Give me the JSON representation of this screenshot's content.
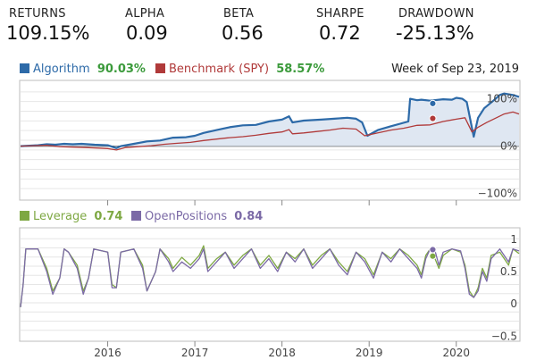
{
  "stats": [
    {
      "label": "RETURNS",
      "value": "109.15%"
    },
    {
      "label": "ALPHA",
      "value": "0.09"
    },
    {
      "label": "BETA",
      "value": "0.56"
    },
    {
      "label": "SHARPE",
      "value": "0.72"
    },
    {
      "label": "DRAWDOWN",
      "value": "-25.13%"
    }
  ],
  "colors": {
    "algorithm": "#2d6aa8",
    "benchmark": "#b03a3a",
    "leverage": "#7ea843",
    "open_positions": "#7b6aa6",
    "area_fill": "#dfe7f2",
    "legend_value": "#3b9a3b"
  },
  "chart_data": [
    {
      "type": "line",
      "period_label": "Week of Sep 23, 2019",
      "yticks": [
        {
          "value": 100,
          "label": "100%"
        },
        {
          "value": 0,
          "label": "0%"
        },
        {
          "value": -100,
          "label": "−100%"
        }
      ],
      "ylim": [
        -110,
        135
      ],
      "grid": true,
      "legend": "top-left",
      "series": [
        {
          "name": "Algorithm",
          "legend_value": "90.03%",
          "area": true,
          "marker": {
            "x": 2019.73,
            "y": 90.03
          },
          "points": [
            [
              2015.0,
              0
            ],
            [
              2015.1,
              1
            ],
            [
              2015.2,
              2
            ],
            [
              2015.3,
              4
            ],
            [
              2015.4,
              3
            ],
            [
              2015.5,
              5
            ],
            [
              2015.6,
              4
            ],
            [
              2015.7,
              5
            ],
            [
              2015.85,
              3
            ],
            [
              2016.0,
              2
            ],
            [
              2016.1,
              -4
            ],
            [
              2016.15,
              0
            ],
            [
              2016.3,
              5
            ],
            [
              2016.45,
              10
            ],
            [
              2016.6,
              12
            ],
            [
              2016.75,
              18
            ],
            [
              2016.9,
              19
            ],
            [
              2017.0,
              22
            ],
            [
              2017.1,
              28
            ],
            [
              2017.25,
              34
            ],
            [
              2017.4,
              40
            ],
            [
              2017.55,
              44
            ],
            [
              2017.7,
              45
            ],
            [
              2017.85,
              52
            ],
            [
              2018.0,
              56
            ],
            [
              2018.08,
              63
            ],
            [
              2018.12,
              50
            ],
            [
              2018.25,
              54
            ],
            [
              2018.45,
              56
            ],
            [
              2018.6,
              58
            ],
            [
              2018.75,
              60
            ],
            [
              2018.85,
              58
            ],
            [
              2018.92,
              50
            ],
            [
              2018.98,
              22
            ],
            [
              2019.1,
              34
            ],
            [
              2019.25,
              42
            ],
            [
              2019.45,
              52
            ],
            [
              2019.47,
              100
            ],
            [
              2019.55,
              97
            ],
            [
              2019.6,
              98
            ],
            [
              2019.7,
              96
            ],
            [
              2019.85,
              99
            ],
            [
              2019.95,
              98
            ],
            [
              2020.0,
              102
            ],
            [
              2020.07,
              100
            ],
            [
              2020.12,
              93
            ],
            [
              2020.2,
              20
            ],
            [
              2020.25,
              60
            ],
            [
              2020.32,
              80
            ],
            [
              2020.42,
              95
            ],
            [
              2020.5,
              108
            ],
            [
              2020.55,
              111
            ],
            [
              2020.65,
              108
            ],
            [
              2020.72,
              104
            ]
          ]
        },
        {
          "name": "Benchmark (SPY)",
          "legend_value": "58.57%",
          "area": false,
          "marker": {
            "x": 2019.73,
            "y": 58.57
          },
          "points": [
            [
              2015.0,
              0
            ],
            [
              2015.15,
              1
            ],
            [
              2015.3,
              2
            ],
            [
              2015.45,
              -1
            ],
            [
              2015.6,
              -2
            ],
            [
              2015.75,
              -3
            ],
            [
              2015.9,
              -4
            ],
            [
              2016.0,
              -5
            ],
            [
              2016.1,
              -8
            ],
            [
              2016.2,
              -3
            ],
            [
              2016.35,
              -1
            ],
            [
              2016.5,
              1
            ],
            [
              2016.65,
              4
            ],
            [
              2016.8,
              6
            ],
            [
              2016.95,
              8
            ],
            [
              2017.1,
              12
            ],
            [
              2017.25,
              15
            ],
            [
              2017.4,
              18
            ],
            [
              2017.55,
              20
            ],
            [
              2017.7,
              23
            ],
            [
              2017.85,
              27
            ],
            [
              2018.0,
              30
            ],
            [
              2018.08,
              35
            ],
            [
              2018.12,
              26
            ],
            [
              2018.25,
              28
            ],
            [
              2018.4,
              31
            ],
            [
              2018.55,
              34
            ],
            [
              2018.7,
              38
            ],
            [
              2018.85,
              36
            ],
            [
              2018.95,
              22
            ],
            [
              2019.1,
              28
            ],
            [
              2019.25,
              34
            ],
            [
              2019.4,
              38
            ],
            [
              2019.55,
              44
            ],
            [
              2019.7,
              45
            ],
            [
              2019.85,
              52
            ],
            [
              2020.0,
              57
            ],
            [
              2020.1,
              60
            ],
            [
              2020.18,
              30
            ],
            [
              2020.25,
              40
            ],
            [
              2020.35,
              50
            ],
            [
              2020.45,
              59
            ],
            [
              2020.55,
              68
            ],
            [
              2020.65,
              72
            ],
            [
              2020.72,
              68
            ]
          ]
        }
      ]
    },
    {
      "type": "line",
      "yticks": [
        {
          "value": 1,
          "label": "1"
        },
        {
          "value": 0.5,
          "label": "0.5"
        },
        {
          "value": 0,
          "label": "0"
        },
        {
          "value": -0.5,
          "label": "−0.5"
        }
      ],
      "ylim": [
        -0.55,
        1.15
      ],
      "x_ticks": [
        "2016",
        "2017",
        "2018",
        "2019",
        "2020"
      ],
      "x_tick_values": [
        2016,
        2017,
        2018,
        2019,
        2020
      ],
      "xlim": [
        2015.0,
        2020.72
      ],
      "grid": true,
      "legend": "top-left",
      "series": [
        {
          "name": "Leverage",
          "legend_value": "0.74",
          "marker": {
            "x": 2019.73,
            "y": 0.74
          },
          "points": [
            [
              2015.0,
              -0.05
            ],
            [
              2015.03,
              0.3
            ],
            [
              2015.06,
              0.85
            ],
            [
              2015.2,
              0.85
            ],
            [
              2015.3,
              0.55
            ],
            [
              2015.37,
              0.2
            ],
            [
              2015.45,
              0.4
            ],
            [
              2015.5,
              0.85
            ],
            [
              2015.55,
              0.8
            ],
            [
              2015.65,
              0.6
            ],
            [
              2015.72,
              0.2
            ],
            [
              2015.78,
              0.4
            ],
            [
              2015.84,
              0.85
            ],
            [
              2016.0,
              0.8
            ],
            [
              2016.05,
              0.3
            ],
            [
              2016.1,
              0.25
            ],
            [
              2016.15,
              0.8
            ],
            [
              2016.3,
              0.85
            ],
            [
              2016.4,
              0.6
            ],
            [
              2016.45,
              0.2
            ],
            [
              2016.55,
              0.5
            ],
            [
              2016.6,
              0.85
            ],
            [
              2016.7,
              0.7
            ],
            [
              2016.75,
              0.55
            ],
            [
              2016.85,
              0.72
            ],
            [
              2016.95,
              0.6
            ],
            [
              2017.05,
              0.75
            ],
            [
              2017.1,
              0.9
            ],
            [
              2017.15,
              0.55
            ],
            [
              2017.25,
              0.7
            ],
            [
              2017.35,
              0.8
            ],
            [
              2017.45,
              0.6
            ],
            [
              2017.55,
              0.75
            ],
            [
              2017.65,
              0.85
            ],
            [
              2017.75,
              0.6
            ],
            [
              2017.85,
              0.75
            ],
            [
              2017.95,
              0.55
            ],
            [
              2018.05,
              0.8
            ],
            [
              2018.15,
              0.7
            ],
            [
              2018.25,
              0.85
            ],
            [
              2018.35,
              0.6
            ],
            [
              2018.45,
              0.75
            ],
            [
              2018.55,
              0.85
            ],
            [
              2018.65,
              0.65
            ],
            [
              2018.75,
              0.5
            ],
            [
              2018.85,
              0.8
            ],
            [
              2018.95,
              0.7
            ],
            [
              2019.05,
              0.45
            ],
            [
              2019.15,
              0.8
            ],
            [
              2019.25,
              0.7
            ],
            [
              2019.35,
              0.85
            ],
            [
              2019.45,
              0.75
            ],
            [
              2019.55,
              0.6
            ],
            [
              2019.6,
              0.45
            ],
            [
              2019.65,
              0.75
            ],
            [
              2019.7,
              0.85
            ],
            [
              2019.75,
              0.72
            ],
            [
              2019.8,
              0.55
            ],
            [
              2019.85,
              0.75
            ],
            [
              2019.95,
              0.85
            ],
            [
              2020.05,
              0.8
            ],
            [
              2020.1,
              0.6
            ],
            [
              2020.15,
              0.2
            ],
            [
              2020.2,
              0.1
            ],
            [
              2020.25,
              0.25
            ],
            [
              2020.3,
              0.55
            ],
            [
              2020.35,
              0.4
            ],
            [
              2020.4,
              0.75
            ],
            [
              2020.5,
              0.8
            ],
            [
              2020.6,
              0.6
            ],
            [
              2020.65,
              0.85
            ],
            [
              2020.72,
              0.78
            ]
          ]
        },
        {
          "name": "OpenPositions",
          "legend_value": "0.84",
          "marker": {
            "x": 2019.73,
            "y": 0.84
          },
          "points": [
            [
              2015.0,
              -0.05
            ],
            [
              2015.03,
              0.3
            ],
            [
              2015.06,
              0.85
            ],
            [
              2015.2,
              0.85
            ],
            [
              2015.3,
              0.5
            ],
            [
              2015.37,
              0.15
            ],
            [
              2015.45,
              0.4
            ],
            [
              2015.5,
              0.85
            ],
            [
              2015.55,
              0.8
            ],
            [
              2015.65,
              0.55
            ],
            [
              2015.72,
              0.15
            ],
            [
              2015.78,
              0.4
            ],
            [
              2015.84,
              0.85
            ],
            [
              2016.0,
              0.8
            ],
            [
              2016.05,
              0.25
            ],
            [
              2016.1,
              0.25
            ],
            [
              2016.15,
              0.8
            ],
            [
              2016.3,
              0.85
            ],
            [
              2016.4,
              0.55
            ],
            [
              2016.45,
              0.2
            ],
            [
              2016.55,
              0.5
            ],
            [
              2016.6,
              0.85
            ],
            [
              2016.7,
              0.65
            ],
            [
              2016.75,
              0.5
            ],
            [
              2016.85,
              0.65
            ],
            [
              2016.95,
              0.55
            ],
            [
              2017.05,
              0.7
            ],
            [
              2017.1,
              0.85
            ],
            [
              2017.15,
              0.5
            ],
            [
              2017.25,
              0.65
            ],
            [
              2017.35,
              0.8
            ],
            [
              2017.45,
              0.55
            ],
            [
              2017.55,
              0.7
            ],
            [
              2017.65,
              0.85
            ],
            [
              2017.75,
              0.55
            ],
            [
              2017.85,
              0.7
            ],
            [
              2017.95,
              0.5
            ],
            [
              2018.05,
              0.8
            ],
            [
              2018.15,
              0.65
            ],
            [
              2018.25,
              0.85
            ],
            [
              2018.35,
              0.55
            ],
            [
              2018.45,
              0.7
            ],
            [
              2018.55,
              0.85
            ],
            [
              2018.65,
              0.6
            ],
            [
              2018.75,
              0.45
            ],
            [
              2018.85,
              0.8
            ],
            [
              2018.95,
              0.65
            ],
            [
              2019.05,
              0.4
            ],
            [
              2019.15,
              0.8
            ],
            [
              2019.25,
              0.65
            ],
            [
              2019.35,
              0.85
            ],
            [
              2019.45,
              0.7
            ],
            [
              2019.55,
              0.55
            ],
            [
              2019.6,
              0.4
            ],
            [
              2019.65,
              0.7
            ],
            [
              2019.7,
              0.85
            ],
            [
              2019.75,
              0.85
            ],
            [
              2019.8,
              0.6
            ],
            [
              2019.85,
              0.8
            ],
            [
              2019.95,
              0.85
            ],
            [
              2020.05,
              0.82
            ],
            [
              2020.1,
              0.55
            ],
            [
              2020.15,
              0.15
            ],
            [
              2020.2,
              0.1
            ],
            [
              2020.25,
              0.2
            ],
            [
              2020.3,
              0.5
            ],
            [
              2020.35,
              0.35
            ],
            [
              2020.4,
              0.7
            ],
            [
              2020.5,
              0.85
            ],
            [
              2020.6,
              0.65
            ],
            [
              2020.65,
              0.85
            ],
            [
              2020.72,
              0.82
            ]
          ]
        }
      ]
    }
  ]
}
